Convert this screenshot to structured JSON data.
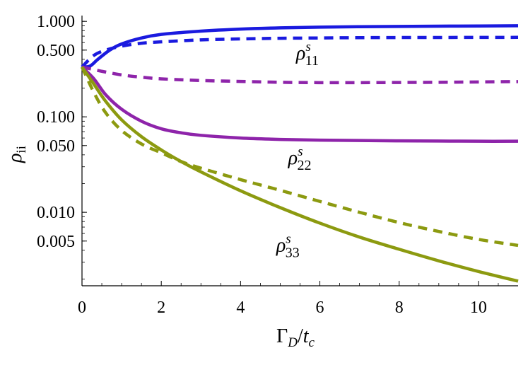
{
  "chart_data": {
    "type": "line",
    "x_axis": {
      "label_main": "Γ",
      "label_main_sub": "D",
      "label_sep": "/",
      "label_den": "t",
      "label_den_sub": "c",
      "range": [
        0,
        11
      ],
      "ticks": [
        0,
        2,
        4,
        6,
        8,
        10
      ],
      "tick_labels": [
        "0",
        "2",
        "4",
        "6",
        "8",
        "10"
      ]
    },
    "y_axis": {
      "label_main": "ρ",
      "label_sub": "ii",
      "scale": "log",
      "range": [
        0.0017,
        1.15
      ],
      "ticks": [
        1.0,
        0.5,
        0.1,
        0.05,
        0.01,
        0.005
      ],
      "tick_labels": [
        "1.000",
        "0.500",
        "0.100",
        "0.050",
        "0.010",
        "0.005"
      ]
    },
    "grid": false,
    "series": [
      {
        "color": "#1a1adf",
        "dash": "solid",
        "x": [
          0,
          0.2,
          0.4,
          0.7,
          1.0,
          1.5,
          2,
          3,
          4,
          5,
          6,
          7,
          8,
          9,
          10,
          11
        ],
        "y": [
          0.333,
          0.34,
          0.4,
          0.5,
          0.58,
          0.67,
          0.73,
          0.79,
          0.83,
          0.855,
          0.87,
          0.88,
          0.885,
          0.89,
          0.895,
          0.9
        ]
      },
      {
        "color": "#1a1adf",
        "dash": "dashed",
        "x": [
          0,
          0.3,
          0.6,
          1,
          1.5,
          2,
          3,
          4,
          5,
          6,
          7,
          8,
          9,
          10,
          11
        ],
        "y": [
          0.333,
          0.44,
          0.5,
          0.55,
          0.59,
          0.61,
          0.64,
          0.655,
          0.665,
          0.67,
          0.675,
          0.677,
          0.678,
          0.679,
          0.68
        ]
      },
      {
        "color": "#8e24aa",
        "dash": "solid",
        "x": [
          0,
          0.3,
          0.6,
          1,
          1.5,
          2,
          2.5,
          3,
          4,
          5,
          6,
          7,
          8,
          9,
          10,
          11
        ],
        "y": [
          0.333,
          0.25,
          0.17,
          0.12,
          0.09,
          0.075,
          0.068,
          0.064,
          0.06,
          0.058,
          0.057,
          0.0565,
          0.056,
          0.0558,
          0.0555,
          0.0555
        ]
      },
      {
        "color": "#8e24aa",
        "dash": "dashed",
        "x": [
          0,
          0.5,
          1,
          1.5,
          2,
          3,
          4,
          5,
          6,
          7,
          8,
          9,
          10,
          11
        ],
        "y": [
          0.333,
          0.3,
          0.275,
          0.26,
          0.25,
          0.24,
          0.235,
          0.23,
          0.228,
          0.228,
          0.229,
          0.23,
          0.232,
          0.234
        ]
      },
      {
        "color": "#8c9a10",
        "dash": "solid",
        "x": [
          0,
          0.3,
          0.6,
          1,
          1.5,
          2,
          2.5,
          3,
          4,
          5,
          6,
          7,
          8,
          9,
          10,
          11
        ],
        "y": [
          0.333,
          0.22,
          0.145,
          0.093,
          0.062,
          0.045,
          0.034,
          0.0265,
          0.0168,
          0.0112,
          0.0077,
          0.0055,
          0.0041,
          0.0031,
          0.0024,
          0.0019
        ]
      },
      {
        "color": "#8c9a10",
        "dash": "dashed",
        "x": [
          0,
          0.3,
          0.6,
          1,
          1.5,
          2,
          2.5,
          3,
          4,
          5,
          6,
          7,
          8,
          9,
          10,
          11
        ],
        "y": [
          0.333,
          0.18,
          0.11,
          0.072,
          0.052,
          0.042,
          0.034,
          0.029,
          0.022,
          0.017,
          0.013,
          0.01,
          0.0078,
          0.0063,
          0.0052,
          0.0045
        ]
      }
    ],
    "annotations": [
      {
        "base": "ρ",
        "sup": "s",
        "sub": "11",
        "x": 5.4,
        "y": 0.4
      },
      {
        "base": "ρ",
        "sup": "s",
        "sub": "22",
        "x": 5.2,
        "y": 0.032
      },
      {
        "base": "ρ",
        "sup": "s",
        "sub": "33",
        "x": 4.9,
        "y": 0.0039
      }
    ]
  }
}
